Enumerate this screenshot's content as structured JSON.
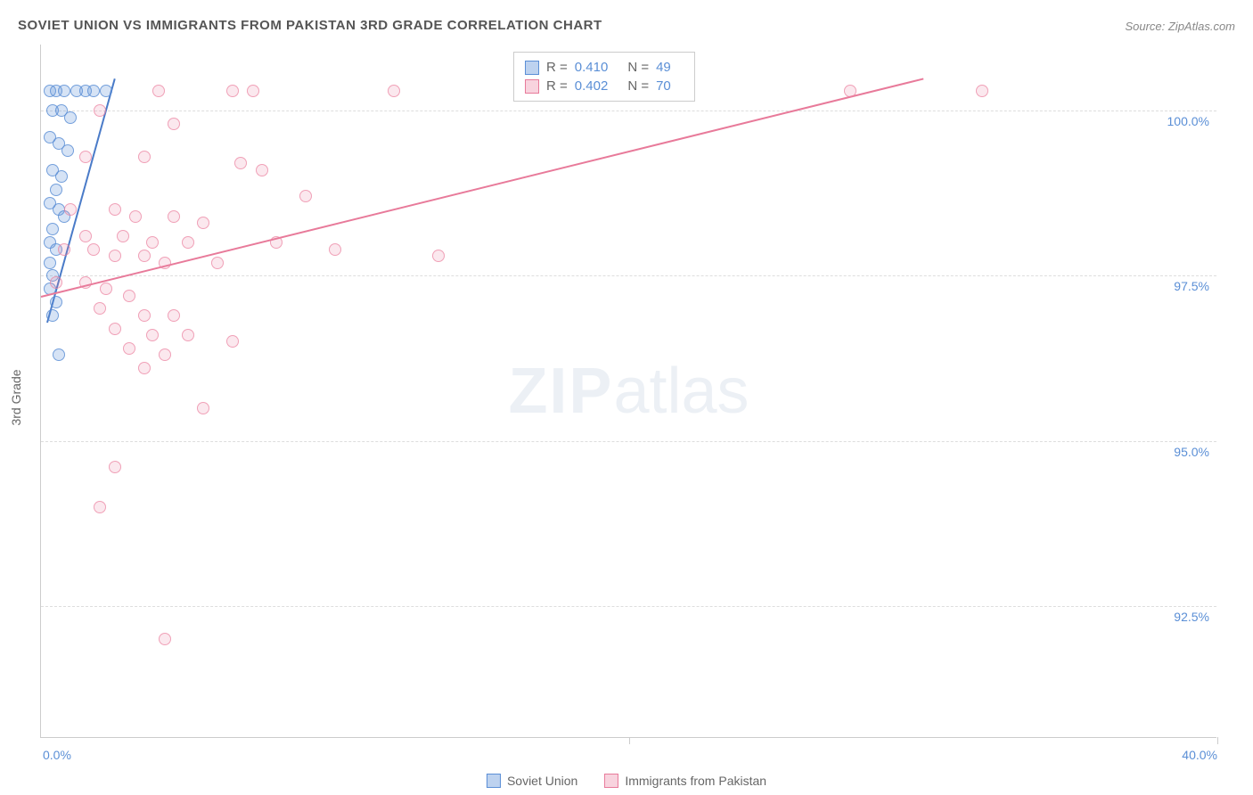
{
  "title": "SOVIET UNION VS IMMIGRANTS FROM PAKISTAN 3RD GRADE CORRELATION CHART",
  "source": "Source: ZipAtlas.com",
  "y_axis_label": "3rd Grade",
  "watermark_bold": "ZIP",
  "watermark_light": "atlas",
  "chart": {
    "type": "scatter",
    "x_range": [
      0,
      40
    ],
    "y_range": [
      90.5,
      101
    ],
    "x_ticks": [
      0,
      20,
      40
    ],
    "x_tick_labels": [
      "0.0%",
      "",
      "40.0%"
    ],
    "y_ticks": [
      92.5,
      95.0,
      97.5,
      100.0
    ],
    "y_tick_labels": [
      "92.5%",
      "95.0%",
      "97.5%",
      "100.0%"
    ],
    "series": [
      {
        "name": "Soviet Union",
        "color": "#5b8fd6",
        "point_class": "point-blue",
        "line_class": "line-blue",
        "swatch_class": "swatch-blue",
        "r_value": "0.410",
        "n_value": "49",
        "regression": {
          "x1": 0.2,
          "y1": 96.8,
          "x2": 2.5,
          "y2": 100.5
        },
        "points": [
          [
            0.3,
            100.3
          ],
          [
            0.5,
            100.3
          ],
          [
            0.8,
            100.3
          ],
          [
            1.2,
            100.3
          ],
          [
            1.5,
            100.3
          ],
          [
            1.8,
            100.3
          ],
          [
            2.2,
            100.3
          ],
          [
            0.4,
            100.0
          ],
          [
            0.7,
            100.0
          ],
          [
            1.0,
            99.9
          ],
          [
            0.3,
            99.6
          ],
          [
            0.6,
            99.5
          ],
          [
            0.9,
            99.4
          ],
          [
            0.4,
            99.1
          ],
          [
            0.7,
            99.0
          ],
          [
            0.5,
            98.8
          ],
          [
            0.3,
            98.6
          ],
          [
            0.6,
            98.5
          ],
          [
            0.8,
            98.4
          ],
          [
            0.4,
            98.2
          ],
          [
            0.3,
            98.0
          ],
          [
            0.5,
            97.9
          ],
          [
            0.3,
            97.7
          ],
          [
            0.4,
            97.5
          ],
          [
            0.3,
            97.3
          ],
          [
            0.5,
            97.1
          ],
          [
            0.4,
            96.9
          ],
          [
            0.6,
            96.3
          ]
        ]
      },
      {
        "name": "Immigrants from Pakistan",
        "color": "#e87a9a",
        "point_class": "point-pink",
        "line_class": "line-pink",
        "swatch_class": "swatch-pink",
        "r_value": "0.402",
        "n_value": "70",
        "regression": {
          "x1": 0,
          "y1": 97.2,
          "x2": 30,
          "y2": 100.5
        },
        "points": [
          [
            4.0,
            100.3
          ],
          [
            6.5,
            100.3
          ],
          [
            7.2,
            100.3
          ],
          [
            12.0,
            100.3
          ],
          [
            27.5,
            100.3
          ],
          [
            32.0,
            100.3
          ],
          [
            2.0,
            100.0
          ],
          [
            4.5,
            99.8
          ],
          [
            1.5,
            99.3
          ],
          [
            3.5,
            99.3
          ],
          [
            6.8,
            99.2
          ],
          [
            7.5,
            99.1
          ],
          [
            9.0,
            98.7
          ],
          [
            1.0,
            98.5
          ],
          [
            2.5,
            98.5
          ],
          [
            3.2,
            98.4
          ],
          [
            4.5,
            98.4
          ],
          [
            5.5,
            98.3
          ],
          [
            1.5,
            98.1
          ],
          [
            2.8,
            98.1
          ],
          [
            3.8,
            98.0
          ],
          [
            5.0,
            98.0
          ],
          [
            8.0,
            98.0
          ],
          [
            0.8,
            97.9
          ],
          [
            1.8,
            97.9
          ],
          [
            2.5,
            97.8
          ],
          [
            3.5,
            97.8
          ],
          [
            4.2,
            97.7
          ],
          [
            6.0,
            97.7
          ],
          [
            10.0,
            97.9
          ],
          [
            13.5,
            97.8
          ],
          [
            0.5,
            97.4
          ],
          [
            1.5,
            97.4
          ],
          [
            2.2,
            97.3
          ],
          [
            3.0,
            97.2
          ],
          [
            2.0,
            97.0
          ],
          [
            3.5,
            96.9
          ],
          [
            4.5,
            96.9
          ],
          [
            2.5,
            96.7
          ],
          [
            3.8,
            96.6
          ],
          [
            5.0,
            96.6
          ],
          [
            6.5,
            96.5
          ],
          [
            3.0,
            96.4
          ],
          [
            4.2,
            96.3
          ],
          [
            3.5,
            96.1
          ],
          [
            5.5,
            95.5
          ],
          [
            2.5,
            94.6
          ],
          [
            2.0,
            94.0
          ],
          [
            4.2,
            92.0
          ]
        ]
      }
    ]
  },
  "stats_label_r": "R =",
  "stats_label_n": "N =",
  "legend_items": [
    "Soviet Union",
    "Immigrants from Pakistan"
  ]
}
